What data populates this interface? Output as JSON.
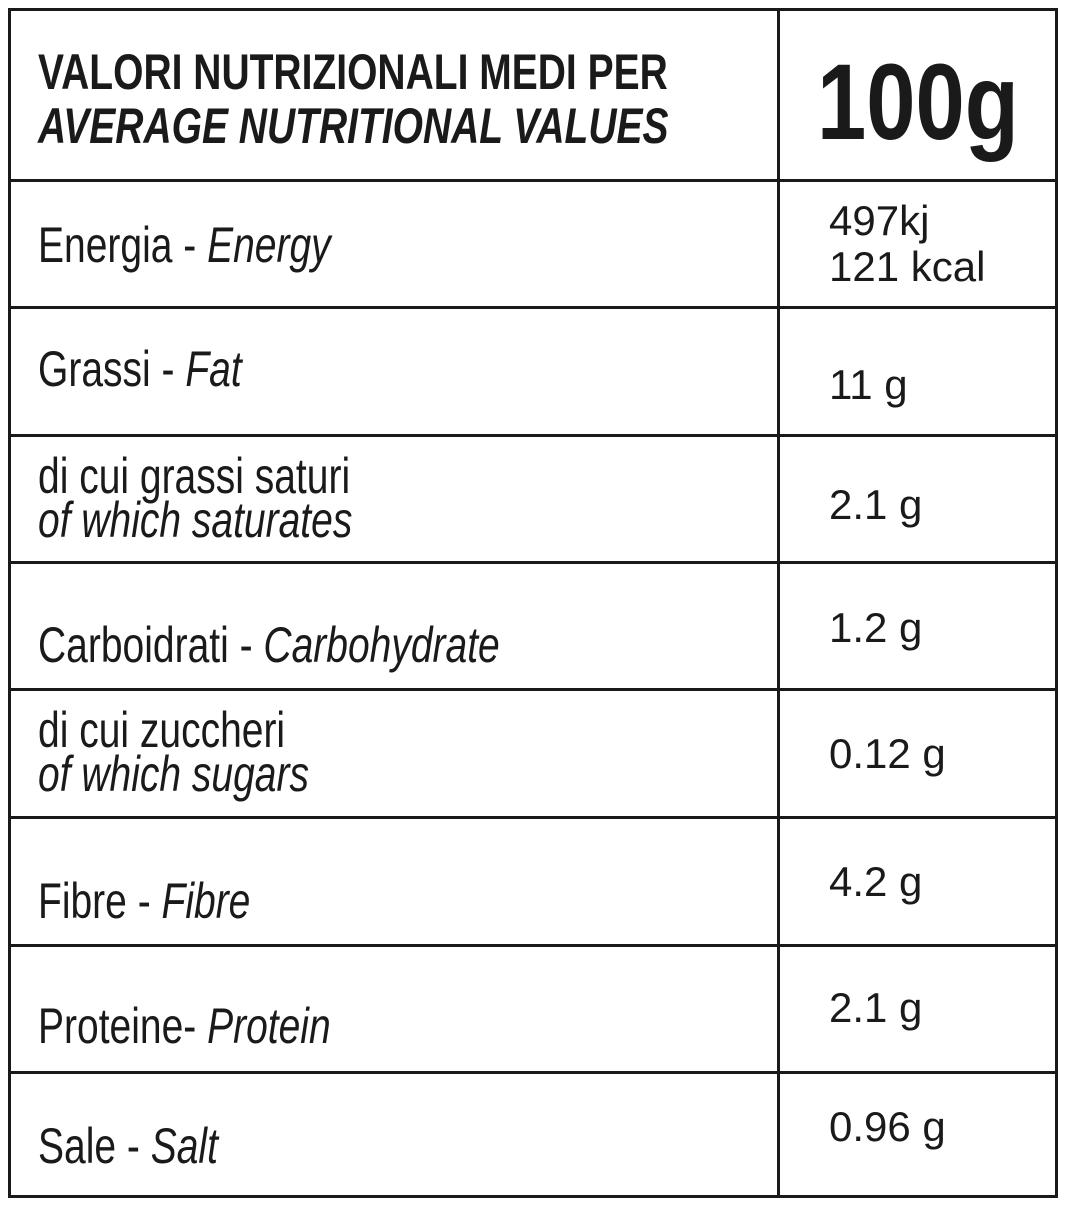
{
  "header": {
    "title_it": "VALORI NUTRIZIONALI MEDI PER",
    "title_en": "AVERAGE NUTRITIONAL VALUES",
    "amount": "100g"
  },
  "rows": [
    {
      "label_it": "Energia - ",
      "label_en": "Energy",
      "value_line1": "497kj",
      "value_line2": "121 kcal"
    },
    {
      "label_it": "Grassi - ",
      "label_en": "Fat",
      "value": "11 g"
    },
    {
      "label_it": "di cui grassi saturi",
      "label_en": "of which saturates",
      "value": "2.1 g"
    },
    {
      "label_it": "Carboidrati - ",
      "label_en": "Carbohydrate",
      "value": "1.2 g"
    },
    {
      "label_it": "di cui zuccheri",
      "label_en": "of which sugars",
      "value": "0.12 g"
    },
    {
      "label_it": "Fibre - ",
      "label_en": "Fibre",
      "value": "4.2 g"
    },
    {
      "label_it": "Proteine- ",
      "label_en": "Protein",
      "value": "2.1 g"
    },
    {
      "label_it": "Sale - ",
      "label_en": "Salt",
      "value": "0.96 g"
    }
  ]
}
